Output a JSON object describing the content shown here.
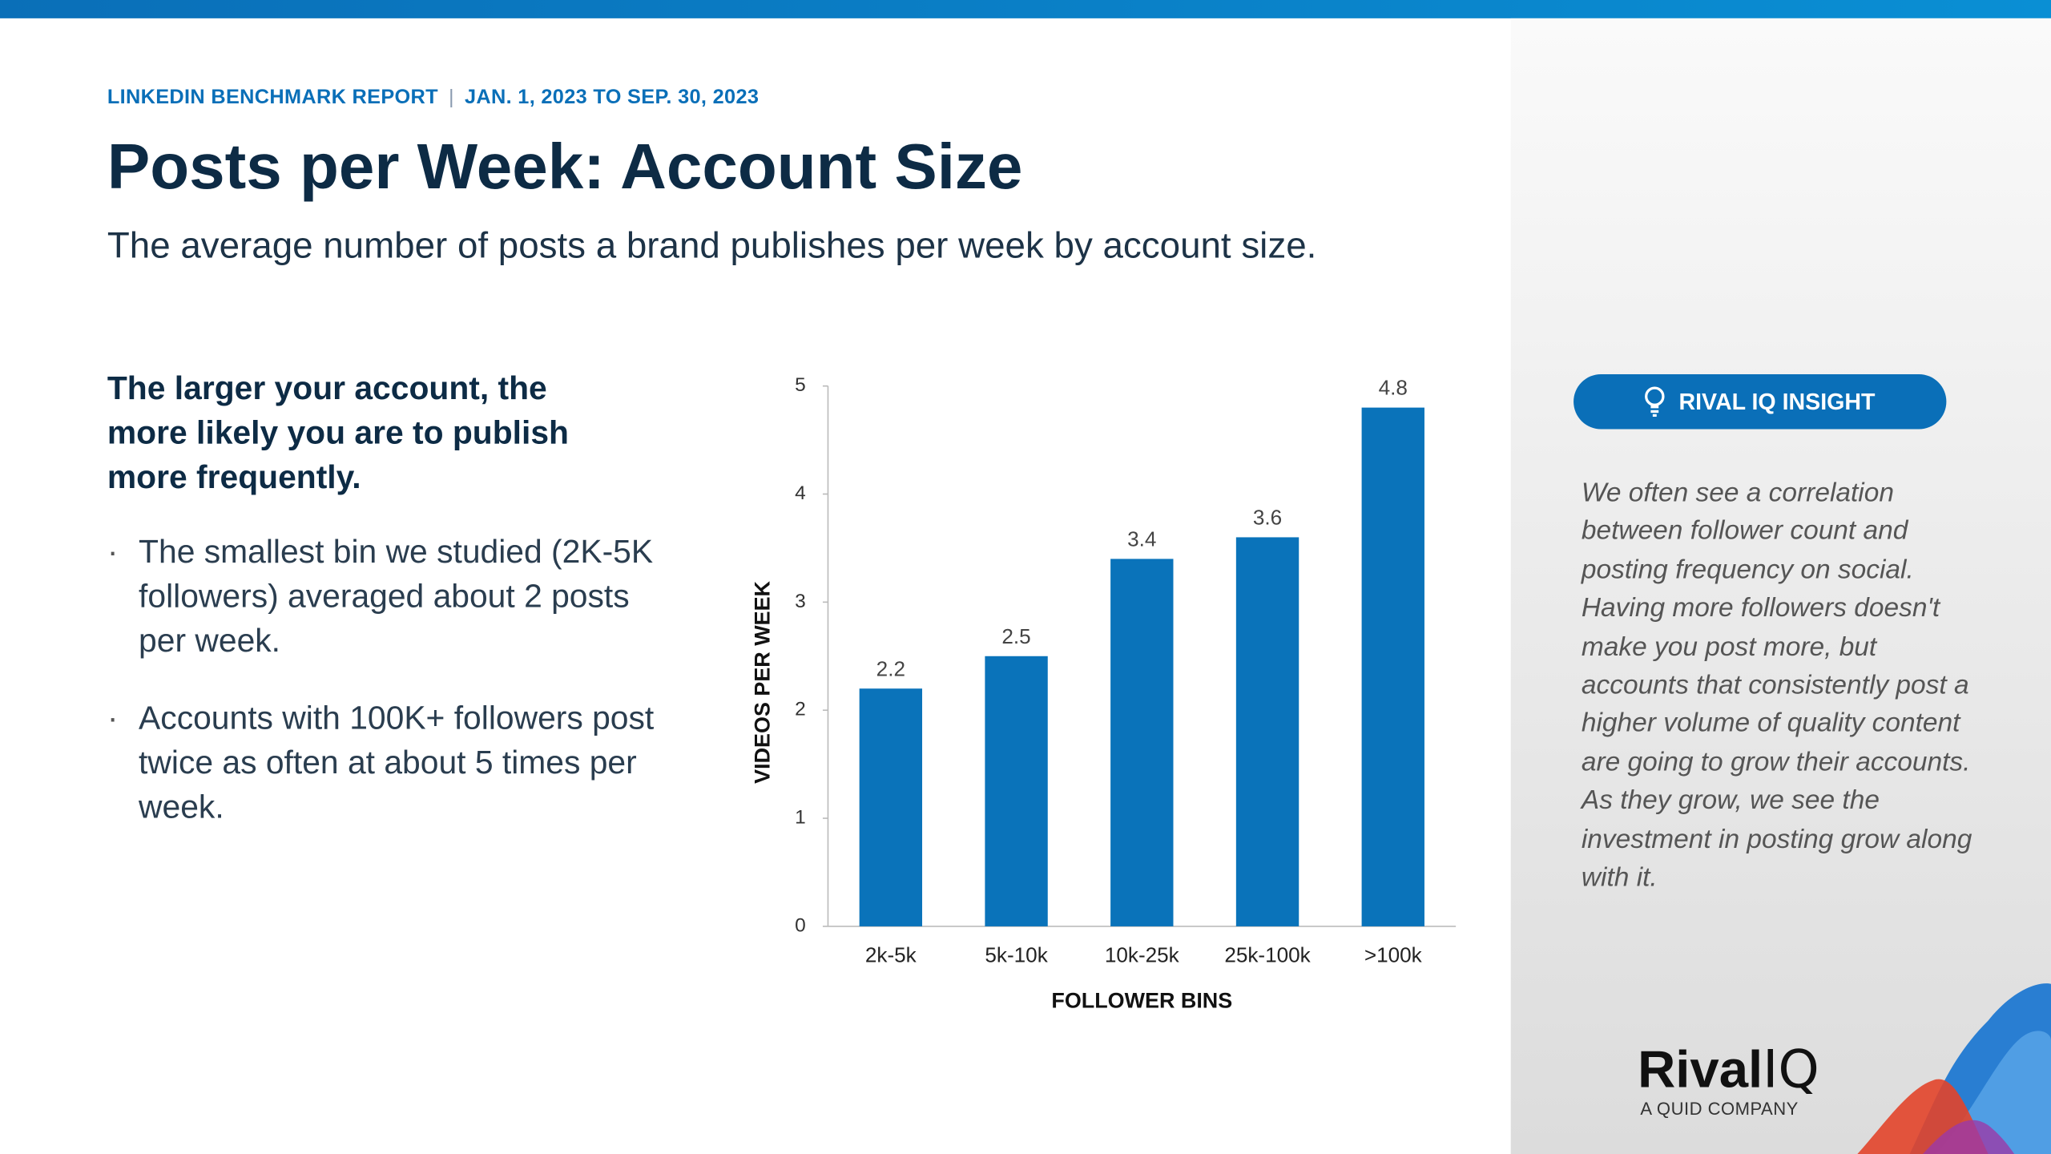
{
  "header": {
    "report": "LINKEDIN BENCHMARK REPORT",
    "separator": "|",
    "date_range": "JAN. 1, 2023 TO SEP. 30, 2023"
  },
  "title": "Posts per Week: Account Size",
  "subtitle": "The average number of posts a brand publishes per week by account size.",
  "key_point": "The larger your account, the more likely you are to publish more frequently.",
  "bullets": [
    "The smallest bin we studied (2K-5K followers) averaged about 2 posts per week.",
    "Accounts with 100K+ followers post twice as often at about 5 times per week."
  ],
  "chart_data": {
    "type": "bar",
    "categories": [
      "2k-5k",
      "5k-10k",
      "10k-25k",
      "25k-100k",
      ">100k"
    ],
    "values": [
      2.2,
      2.5,
      3.4,
      3.6,
      4.8
    ],
    "color": "#0a73ba",
    "ylim": [
      0,
      5
    ],
    "yticks": [
      0,
      1,
      2,
      3,
      4,
      5
    ],
    "x_label": "FOLLOWER BINS",
    "y_label": "VIDEOS PER WEEK"
  },
  "insight": {
    "badge": "RIVAL IQ INSIGHT",
    "text": "We often see a correlation between follower count and posting frequency on social. Having more followers doesn't make you post more, but accounts that consistently post a higher volume of quality content are going to grow their accounts. As they grow, we see the investment in posting grow along with it."
  },
  "logo": {
    "bold": "Rival",
    "light": "IQ",
    "tagline": "A QUID COMPANY"
  }
}
